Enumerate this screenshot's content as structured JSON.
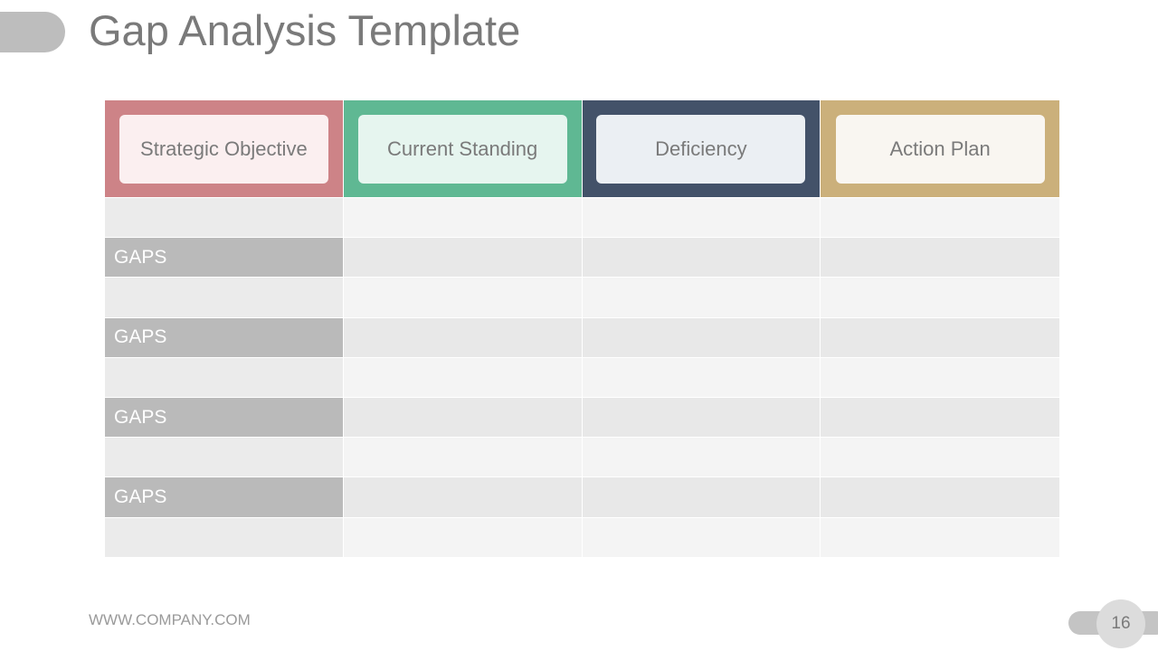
{
  "title": "Gap Analysis Template",
  "colors": {
    "col1_frame": "#cd8387",
    "col1_label_bg": "#fbeff0",
    "col2_frame": "#5fb893",
    "col2_label_bg": "#e6f5ef",
    "col3_frame": "#435269",
    "col3_label_bg": "#ebeff3",
    "col4_frame": "#cbb07b",
    "col4_label_bg": "#f9f6f1",
    "gap_cell": "#bababa"
  },
  "table": {
    "headers": [
      "Strategic Objective",
      "Current Standing",
      "Deficiency",
      "Action Plan"
    ],
    "rows": [
      {
        "label": "",
        "cells": [
          "",
          "",
          ""
        ]
      },
      {
        "label": "GAPS",
        "cells": [
          "",
          "",
          ""
        ]
      },
      {
        "label": "",
        "cells": [
          "",
          "",
          ""
        ]
      },
      {
        "label": "GAPS",
        "cells": [
          "",
          "",
          ""
        ]
      },
      {
        "label": "",
        "cells": [
          "",
          "",
          ""
        ]
      },
      {
        "label": "GAPS",
        "cells": [
          "",
          "",
          ""
        ]
      },
      {
        "label": "",
        "cells": [
          "",
          "",
          ""
        ]
      },
      {
        "label": "GAPS",
        "cells": [
          "",
          "",
          ""
        ]
      },
      {
        "label": "",
        "cells": [
          "",
          "",
          ""
        ]
      }
    ]
  },
  "footer": {
    "website": "WWW.COMPANY.COM",
    "page_number": "16"
  }
}
